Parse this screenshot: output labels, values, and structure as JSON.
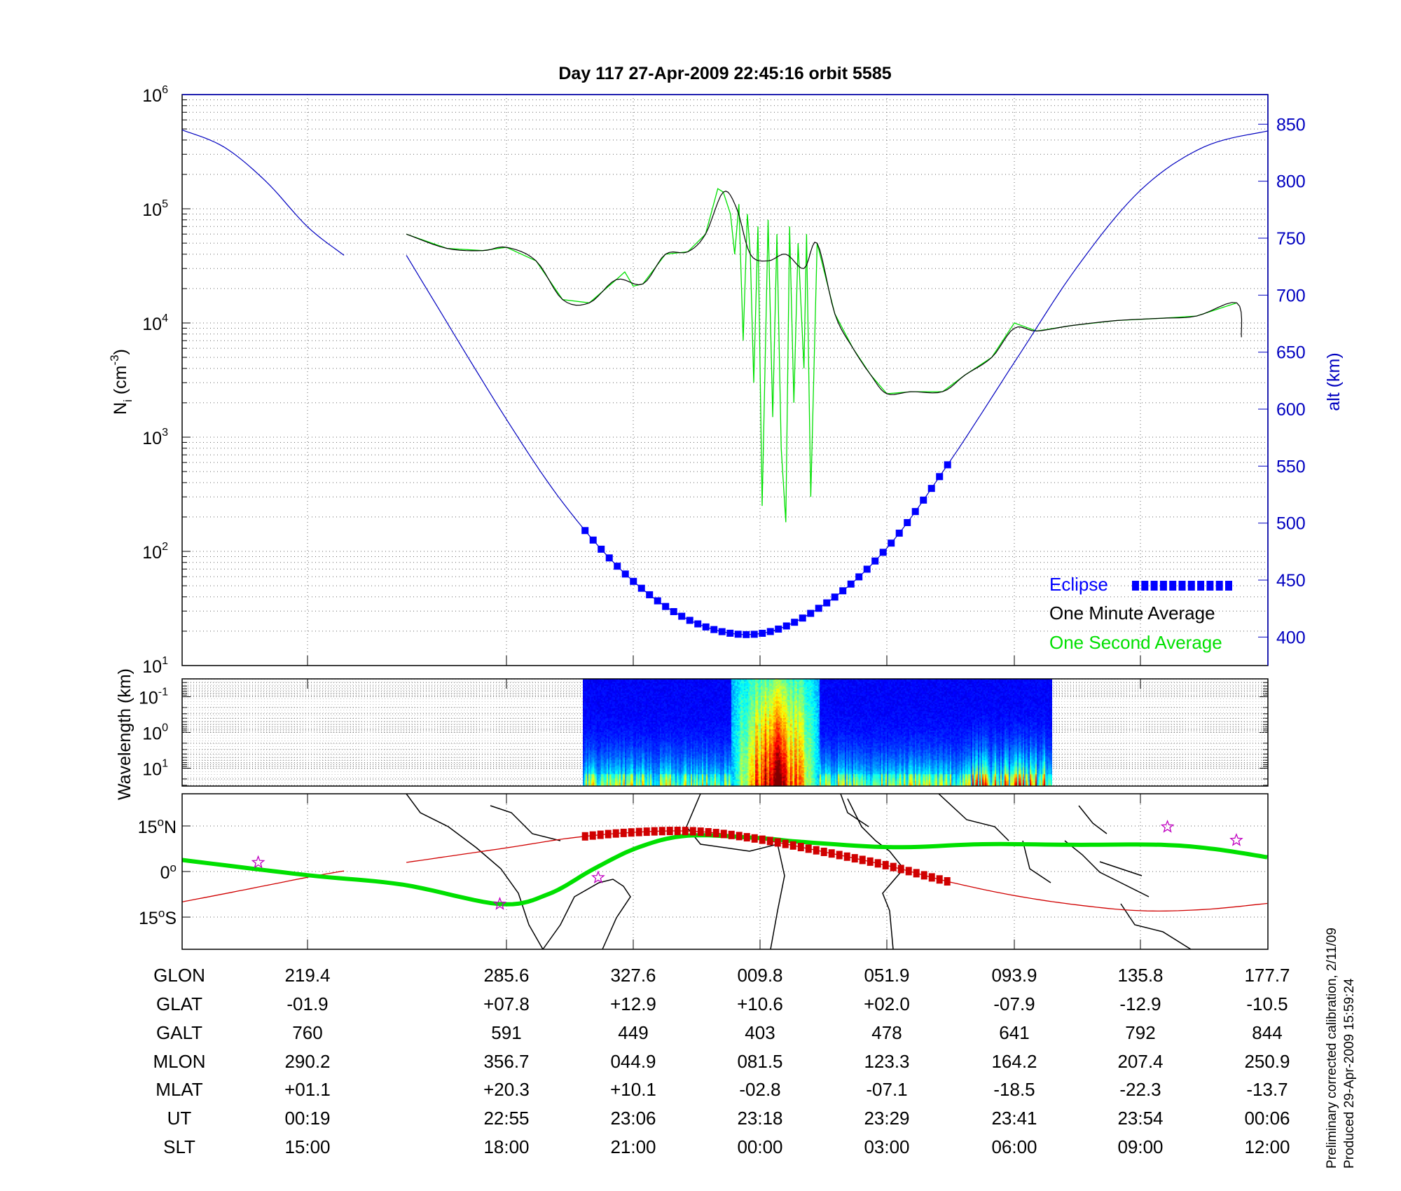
{
  "title": "Day 117  27-Apr-2009 22:45:16   orbit 5585",
  "side_notes": [
    "Preliminary corrected calibration, 2/11/09",
    "Produced 29-Apr-2009 15:59:24"
  ],
  "colors": {
    "density_1s": "#00e000",
    "density_1min": "#000000",
    "altitude": "#0000c0",
    "eclipse": "#0000ff",
    "orbit_track": "#d00000",
    "dip_equator": "#00e000",
    "star": "#c000c0"
  },
  "chart_data": [
    {
      "type": "line",
      "panel": "density",
      "ylabel_parts": {
        "base": "N",
        "sub": "i",
        "unit_open": " (cm",
        "unit_sup": "-3",
        "unit_close": ")"
      },
      "y_scale": "log",
      "ylim": [
        10,
        1000000
      ],
      "yticks": [
        {
          "base": "10",
          "exp": "6"
        },
        {
          "base": "10",
          "exp": "5"
        },
        {
          "base": "10",
          "exp": "4"
        },
        {
          "base": "10",
          "exp": "3"
        },
        {
          "base": "10",
          "exp": "2"
        },
        {
          "base": "10",
          "exp": "1"
        }
      ],
      "y2label": "alt (km)",
      "y2lim": [
        375,
        876
      ],
      "y2ticks": [
        850,
        800,
        750,
        700,
        650,
        600,
        550,
        500,
        450,
        400
      ],
      "x_unit": "SLT (hours, continuous)",
      "xticks_slt": [
        15,
        18,
        21,
        24,
        27,
        30,
        33,
        36
      ],
      "grid": true,
      "legend": {
        "placement": "bottom-right",
        "entries": [
          "Eclipse",
          "One Minute Average",
          "One Second Average"
        ]
      },
      "series": [
        {
          "name": "One Minute Average",
          "x": [
            16.49,
            17.1,
            17.64,
            18.0,
            18.7,
            19.33,
            19.96,
            20.6,
            21.23,
            21.76,
            22.29,
            22.71,
            23.13,
            23.45,
            23.77,
            24.19,
            24.61,
            25.04,
            25.35,
            25.77,
            26.2,
            26.62,
            27.0,
            27.57,
            28.31,
            28.84,
            29.47,
            30.0,
            30.53,
            31.37,
            32.43,
            33.49,
            34.33,
            35.28,
            35.39
          ],
          "y": [
            60000,
            45000,
            43000,
            46000,
            35000,
            16000,
            15000,
            24000,
            22000,
            40000,
            42000,
            60000,
            140000,
            100000,
            40000,
            35000,
            40000,
            30000,
            50000,
            12000,
            6000,
            3500,
            2400,
            2500,
            2500,
            3500,
            5000,
            9000,
            8500,
            9500,
            10500,
            11000,
            11500,
            15000,
            7500
          ]
        },
        {
          "name": "One Second Average",
          "x": [
            16.49,
            17.1,
            17.64,
            18.0,
            18.7,
            19.33,
            19.96,
            20.6,
            20.8,
            21.0,
            21.23,
            21.76,
            22.29,
            22.71,
            23.0,
            23.13,
            23.3,
            23.4,
            23.5,
            23.6,
            23.7,
            23.77,
            23.85,
            23.95,
            24.05,
            24.19,
            24.3,
            24.4,
            24.5,
            24.61,
            24.7,
            24.8,
            24.9,
            25.04,
            25.1,
            25.2,
            25.35,
            25.77,
            26.2,
            26.62,
            27.0,
            27.57,
            28.31,
            28.84,
            29.47,
            30.0,
            30.53,
            31.37,
            32.43,
            33.49,
            34.33,
            35.28
          ],
          "y": [
            60000,
            45000,
            43000,
            46000,
            35000,
            16000,
            15000,
            24000,
            28000,
            21000,
            22000,
            40000,
            42000,
            60000,
            150000,
            140000,
            90000,
            40000,
            110000,
            7000,
            90000,
            40000,
            3000,
            70000,
            250,
            80000,
            1500,
            60000,
            800,
            180,
            70000,
            2000,
            50000,
            4000,
            60000,
            300,
            50000,
            12000,
            6000,
            3500,
            2400,
            2500,
            2500,
            3500,
            5000,
            10000,
            8500,
            9500,
            10500,
            11000,
            11500,
            15000
          ]
        },
        {
          "name": "altitude",
          "axis": "right",
          "x": [
            12.0,
            13.0,
            14.0,
            15.0,
            15.55
          ],
          "y": [
            845,
            830,
            800,
            760,
            735
          ]
        },
        {
          "name": "altitude",
          "axis": "right",
          "x": [
            16.49,
            18.0,
            19.5,
            21.0,
            22.5,
            24.0,
            25.5,
            27.0,
            28.5,
            30.0,
            31.5,
            33.0,
            34.5,
            36.0
          ],
          "y": [
            735,
            591,
            510,
            449,
            412,
            403,
            428,
            478,
            555,
            641,
            725,
            792,
            830,
            844
          ]
        },
        {
          "name": "Eclipse",
          "axis": "right",
          "x_range": [
            19.86,
            28.46
          ]
        }
      ]
    },
    {
      "type": "heatmap",
      "panel": "spectrogram",
      "ylabel": "Wavelength (km)",
      "y_scale": "log",
      "y_inverted": true,
      "yticks": [
        {
          "base": "10",
          "exp": "-1"
        },
        {
          "base": "10",
          "exp": "0"
        },
        {
          "base": "10",
          "exp": "1"
        }
      ],
      "data_x_range": [
        19.8,
        30.9
      ],
      "intense_x_range": [
        23.3,
        25.4
      ],
      "colormap": "jet"
    },
    {
      "type": "line",
      "panel": "map",
      "ylim": [
        -25.6,
        25.6
      ],
      "yticks": [
        {
          "value": "15",
          "suffix": "N"
        },
        {
          "value": "0",
          "suffix": ""
        },
        {
          "value": "15",
          "suffix": "S"
        }
      ],
      "series": [
        {
          "name": "orbit track",
          "x": [
            12.0,
            13.5,
            15.0,
            15.55
          ],
          "y": [
            -10,
            -6,
            -1.9,
            0.2
          ]
        },
        {
          "name": "orbit track",
          "x": [
            16.49,
            18.0,
            19.5,
            21.0,
            22.5,
            24.0,
            25.5,
            27.0,
            28.5,
            30.0,
            31.5,
            33.0,
            34.5,
            36.0
          ],
          "y": [
            3,
            7.8,
            11,
            12.9,
            13.2,
            10.6,
            6.5,
            2.0,
            -3.5,
            -7.9,
            -11,
            -12.9,
            -12.5,
            -10.5
          ]
        },
        {
          "name": "eclipse track",
          "x_range": [
            19.86,
            28.46
          ]
        },
        {
          "name": "dip equator",
          "x": [
            12.0,
            15.0,
            16.43,
            17.9,
            19.0,
            20.07,
            21.13,
            22.29,
            23.98,
            25.04,
            27.15,
            29.26,
            31.37,
            33.49,
            34.75,
            36.0
          ],
          "y": [
            3.8,
            -1.2,
            -4.3,
            -10.7,
            -7.4,
            0.9,
            8,
            11.8,
            11,
            9.7,
            8,
            9,
            8.8,
            8.8,
            7.4,
            4.7
          ]
        },
        {
          "name": "stars",
          "x": [
            13.82,
            17.9,
            20.17,
            33.64,
            35.27
          ],
          "y": [
            3,
            -10.7,
            -2,
            14.7,
            10.3
          ]
        }
      ]
    }
  ],
  "table": {
    "rows": [
      {
        "label": "GLON",
        "values": [
          "219.4",
          "285.6",
          "327.6",
          "009.8",
          "051.9",
          "093.9",
          "135.8",
          "177.7"
        ]
      },
      {
        "label": "GLAT",
        "values": [
          "-01.9",
          "+07.8",
          "+12.9",
          "+10.6",
          "+02.0",
          "-07.9",
          "-12.9",
          "-10.5"
        ]
      },
      {
        "label": "GALT",
        "values": [
          "760",
          "591",
          "449",
          "403",
          "478",
          "641",
          "792",
          "844"
        ]
      },
      {
        "label": "MLON",
        "values": [
          "290.2",
          "356.7",
          "044.9",
          "081.5",
          "123.3",
          "164.2",
          "207.4",
          "250.9"
        ]
      },
      {
        "label": "MLAT",
        "values": [
          "+01.1",
          "+20.3",
          "+10.1",
          "-02.8",
          "-07.1",
          "-18.5",
          "-22.3",
          "-13.7"
        ]
      },
      {
        "label": "UT",
        "values": [
          "00:19",
          "22:55",
          "23:06",
          "23:18",
          "23:29",
          "23:41",
          "23:54",
          "00:06"
        ]
      },
      {
        "label": "SLT",
        "values": [
          "15:00",
          "18:00",
          "21:00",
          "00:00",
          "03:00",
          "06:00",
          "09:00",
          "12:00"
        ]
      }
    ]
  }
}
